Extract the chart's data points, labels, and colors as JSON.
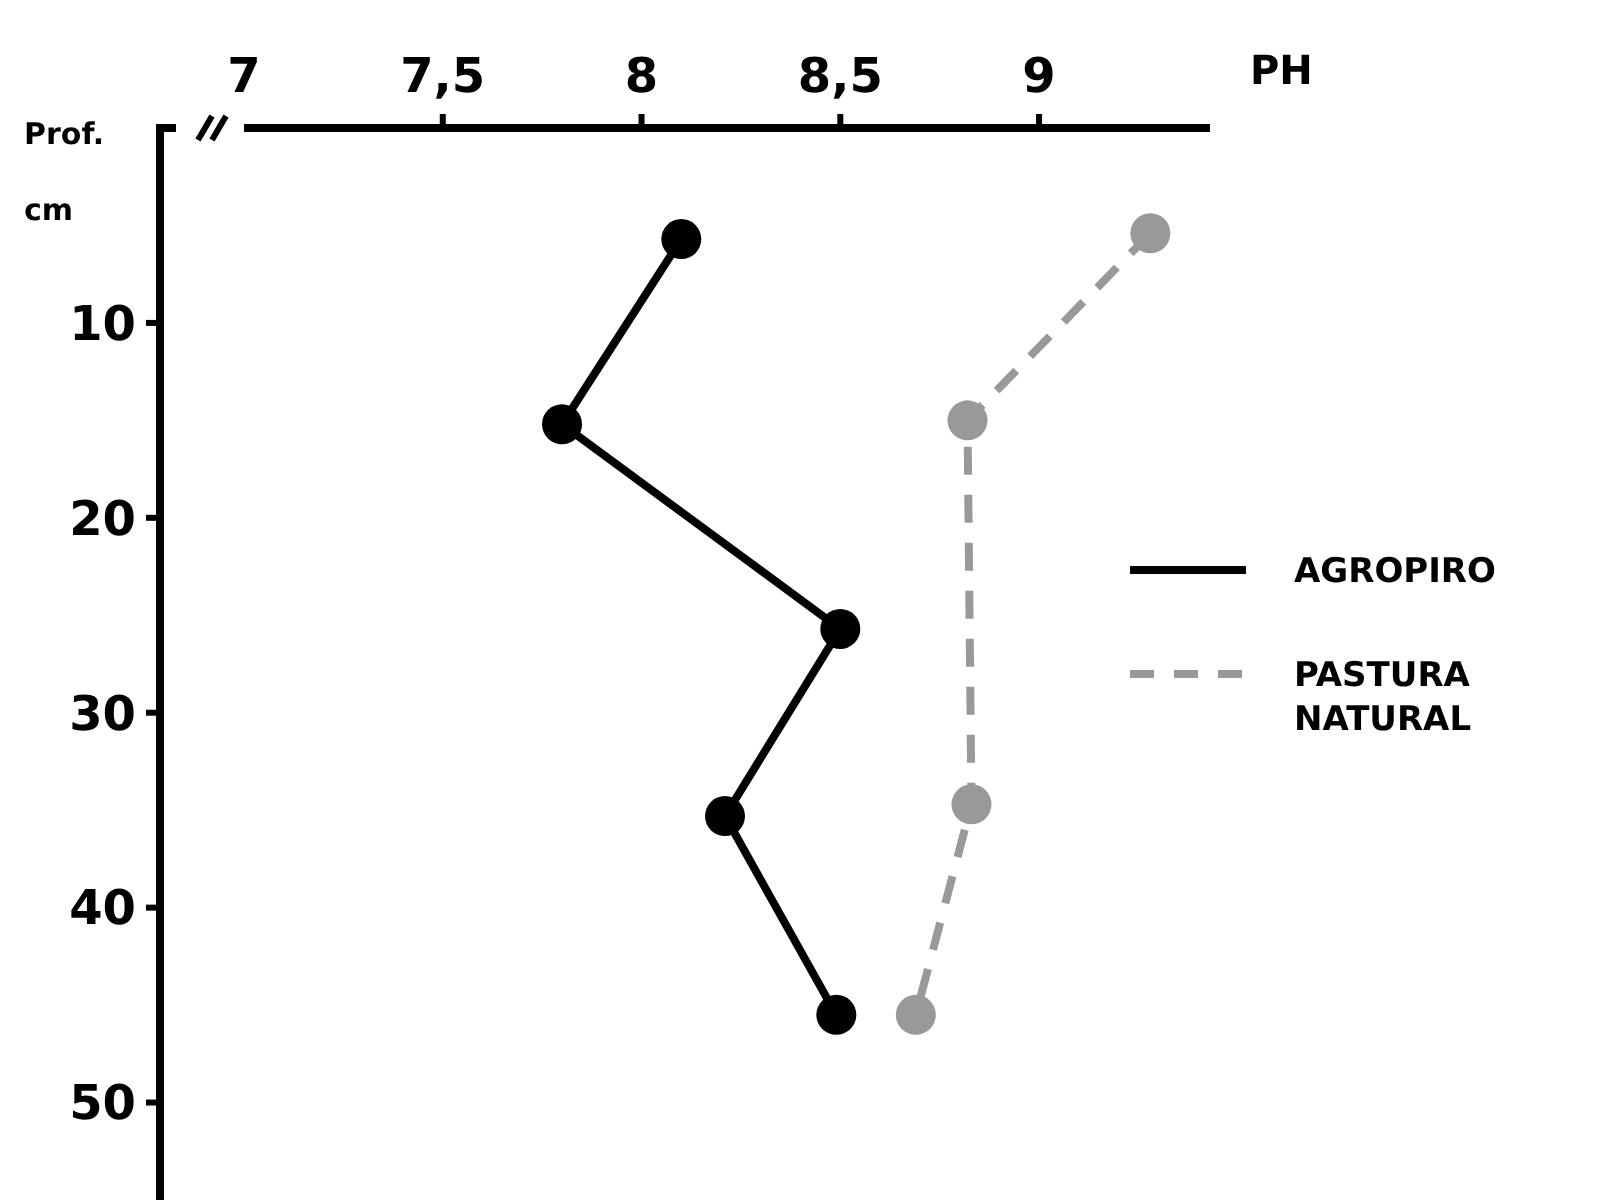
{
  "chart_data": {
    "type": "line",
    "xlabel": "PH",
    "ylabel": "Prof.\ncm",
    "xlim": [
      7,
      9.43
    ],
    "xticks": [
      7,
      {
        "value": 7.5,
        "label": "7,5"
      },
      8,
      {
        "value": 8.5,
        "label": "8,5"
      },
      9
    ],
    "ylim": [
      55,
      0
    ],
    "yticks": [
      10,
      20,
      30,
      40,
      50
    ],
    "legend": "right",
    "marker": "circle",
    "grid": false,
    "series": [
      {
        "name": "AGROPIRO",
        "color": "#000000",
        "line_style": "solid",
        "x": [
          8.1,
          7.8,
          8.5,
          8.21,
          8.49
        ],
        "values": [
          5.7,
          15.2,
          25.7,
          35.3,
          45.5
        ]
      },
      {
        "name": "PASTURA NATURAL",
        "color": "#999999",
        "line_style": "dashed",
        "x": [
          9.28,
          8.82,
          8.83,
          8.69
        ],
        "values": [
          5.4,
          15,
          34.7,
          45.5
        ]
      }
    ]
  }
}
